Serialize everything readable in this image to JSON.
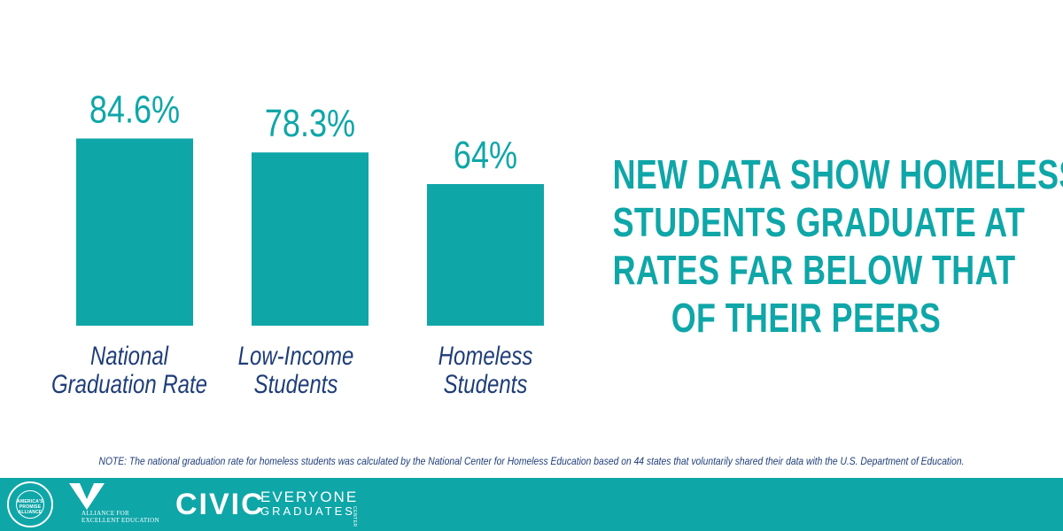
{
  "chart_data": {
    "type": "bar",
    "categories": [
      [
        "National",
        "Graduation Rate"
      ],
      [
        "Low-Income",
        "Students"
      ],
      [
        "Homeless",
        "Students"
      ]
    ],
    "values": [
      84.6,
      78.3,
      64
    ],
    "data_labels": [
      "84.6%",
      "78.3%",
      "64%"
    ],
    "ylim": [
      0,
      100
    ],
    "grid": false,
    "legend": "none",
    "bar_color": "#0fa6a8",
    "label_color": "#1f3d78"
  },
  "headline": {
    "lines": [
      "NEW DATA SHOW HOMELESS",
      "STUDENTS GRADUATE AT",
      "RATES FAR BELOW THAT",
      "OF THEIR PEERS"
    ],
    "color": "#0fa6a8"
  },
  "note": "NOTE: The national graduation rate for homeless students was calculated by the National Center for Homeless Education based on 44 states that voluntarily shared their data with the U.S. Department of Education.",
  "footer": {
    "background": "#0fa6a8",
    "logos": {
      "americas_promise": "AMERICA'S PROMISE ALLIANCE",
      "alliance_line1": "ALLIANCE FOR",
      "alliance_line2": "EXCELLENT EDUCATION",
      "civic": "CIVIC",
      "everyone_line1": "EVERYONE",
      "everyone_line2": "GRADUATES",
      "everyone_line3": "CENTER"
    }
  }
}
